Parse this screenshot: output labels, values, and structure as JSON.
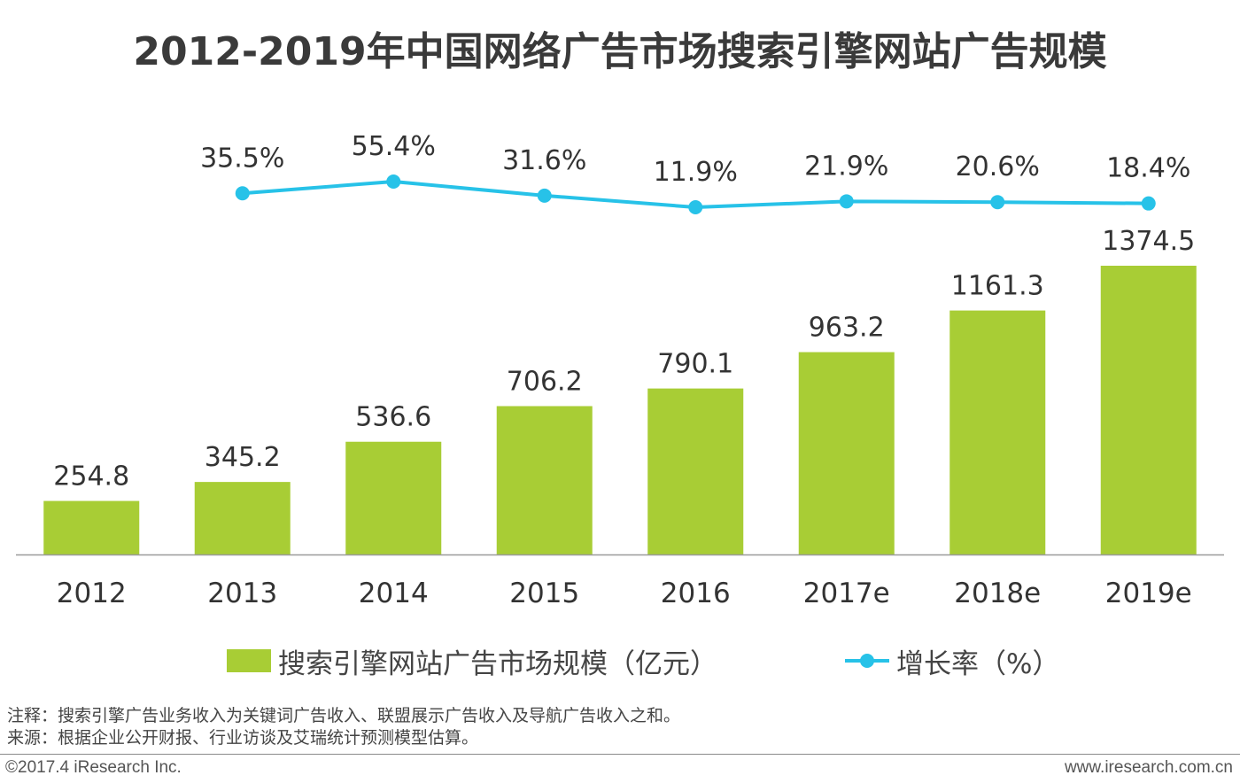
{
  "title": "2012-2019年中国网络广告市场搜索引擎网站广告规模",
  "legend": {
    "bar_label": "搜索引擎网站广告市场规模（亿元）",
    "line_label": "增长率（%）"
  },
  "notes": [
    "注释：搜索引擎广告业务收入为关键词广告收入、联盟展示广告收入及导航广告收入之和。",
    "来源：根据企业公开财报、行业访谈及艾瑞统计预测模型估算。"
  ],
  "footer": {
    "copyright": "©2017.4 iResearch Inc.",
    "url": "www.iresearch.com.cn"
  },
  "colors": {
    "bar": "#a8cd35",
    "line": "#27c2e8",
    "axis": "#9a9a9a",
    "text": "#333333"
  },
  "chart_data": {
    "type": "bar",
    "categories": [
      "2012",
      "2013",
      "2014",
      "2015",
      "2016",
      "2017e",
      "2018e",
      "2019e"
    ],
    "series": [
      {
        "name": "搜索引擎网站广告市场规模（亿元）",
        "type": "bar",
        "values": [
          254.8,
          345.2,
          536.6,
          706.2,
          790.1,
          963.2,
          1161.3,
          1374.5
        ],
        "labels": [
          "254.8",
          "345.2",
          "536.6",
          "706.2",
          "790.1",
          "963.2",
          "1161.3",
          "1374.5"
        ]
      },
      {
        "name": "增长率（%）",
        "type": "line",
        "x": [
          "2013",
          "2014",
          "2015",
          "2016",
          "2017e",
          "2018e",
          "2019e"
        ],
        "values": [
          35.5,
          55.4,
          31.6,
          11.9,
          21.9,
          20.6,
          18.4
        ],
        "labels": [
          "35.5%",
          "55.4%",
          "31.6%",
          "11.9%",
          "21.9%",
          "20.6%",
          "18.4%"
        ]
      }
    ],
    "ylim": [
      0,
      1400
    ],
    "grid": false,
    "legend_position": "bottom"
  }
}
